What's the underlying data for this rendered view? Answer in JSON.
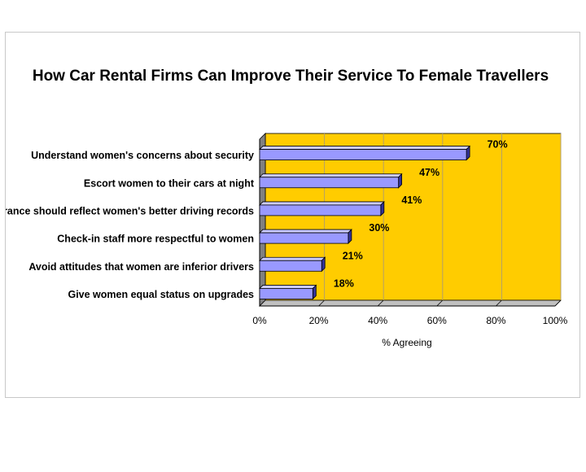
{
  "chart_data": {
    "type": "bar",
    "orientation": "horizontal",
    "title": "How Car Rental Firms Can Improve Their Service To Female Travellers",
    "categories": [
      "Understand women's concerns about security",
      "Escort women to their cars at night",
      "Insurance should reflect women's better driving records",
      "Check-in staff more respectful to women",
      "Avoid attitudes that women are inferior drivers",
      "Give women equal status on upgrades"
    ],
    "values": [
      70,
      47,
      41,
      30,
      21,
      18
    ],
    "data_labels": [
      "70%",
      "47%",
      "41%",
      "30%",
      "21%",
      "18%"
    ],
    "xlabel": "% Agreeing",
    "ylabel": "",
    "xlim": [
      0,
      100
    ],
    "x_ticks": [
      0,
      20,
      40,
      60,
      80,
      100
    ],
    "x_tick_labels": [
      "0%",
      "20%",
      "40%",
      "60%",
      "80%",
      "100%"
    ],
    "grid": true,
    "legend": "none",
    "colors": {
      "plot_background": "#ffcc00",
      "plot_floor": "#808080",
      "bar_front": "#9999ff",
      "bar_top": "#ccccff",
      "bar_side": "#333399",
      "gridline": "#b3a06a"
    }
  }
}
